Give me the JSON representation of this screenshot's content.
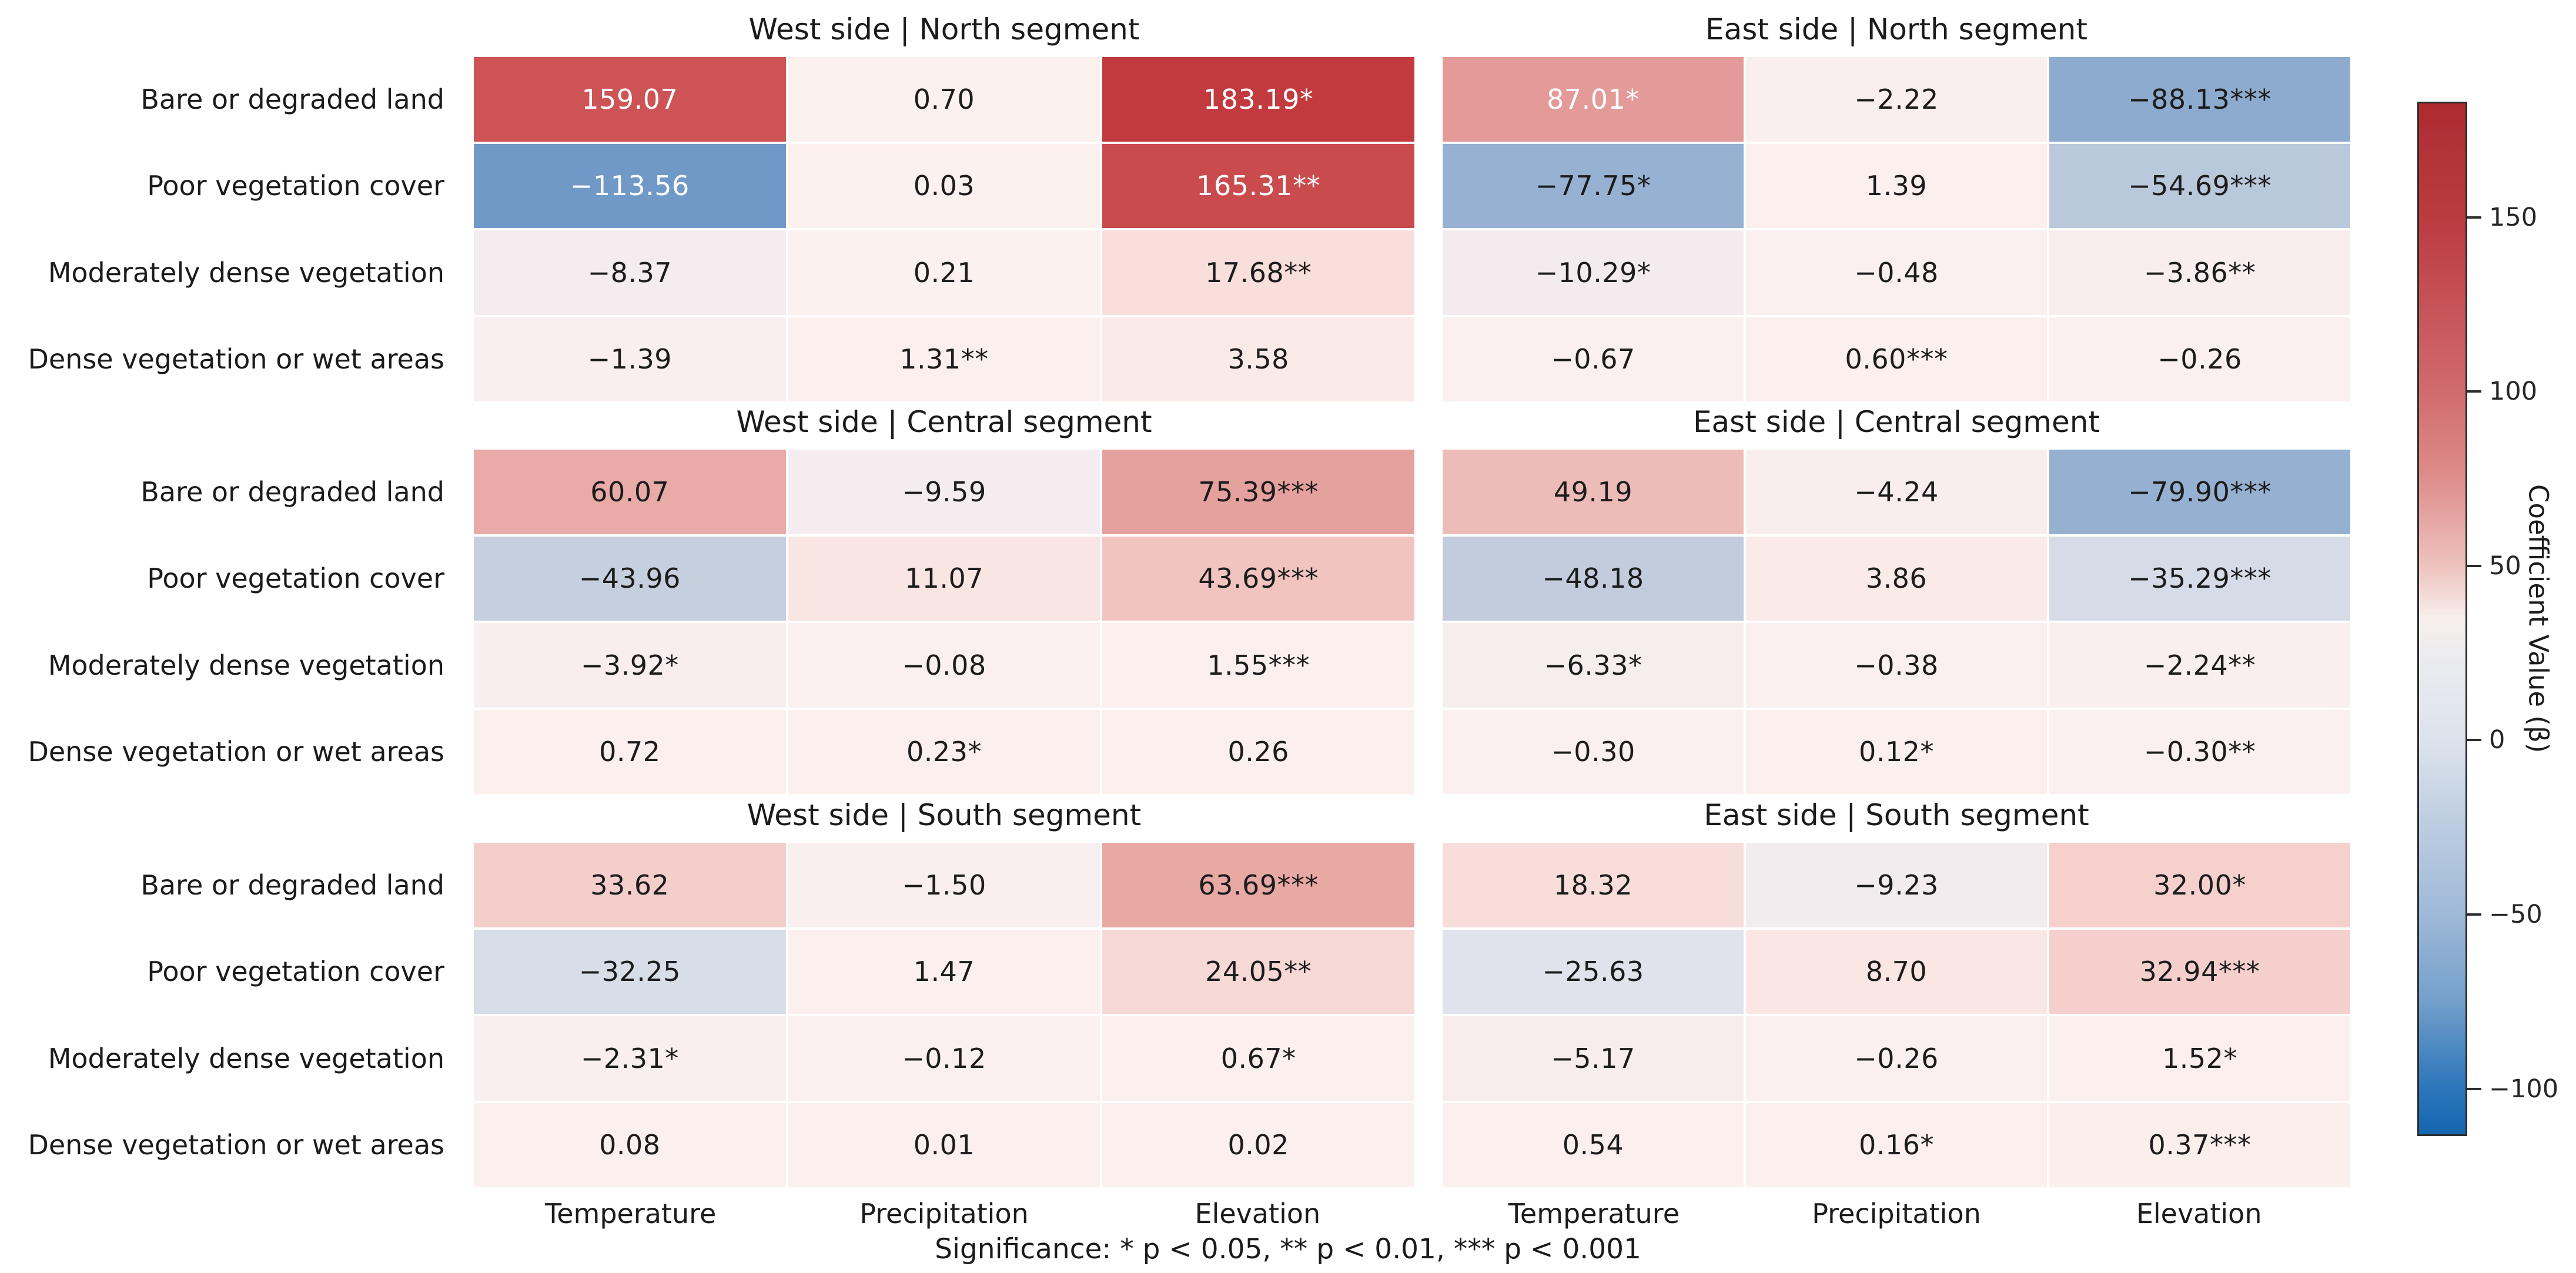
{
  "chart_data": {
    "type": "heatmap",
    "layout_grid": "3 panel-rows x 2 panel-columns, shared colorbar on right",
    "rows": [
      "Bare or degraded land",
      "Poor vegetation cover",
      "Moderately dense vegetation",
      "Dense vegetation or wet areas"
    ],
    "columns": [
      "Temperature",
      "Precipitation",
      "Elevation"
    ],
    "footer": "Significance: * p < 0.05, ** p < 0.01, *** p < 0.001",
    "colorbar": {
      "label": "Coefficient Value (β)",
      "vmin": -113.56,
      "vmax": 183.19,
      "ticks": [
        {
          "label": "150",
          "value": 150
        },
        {
          "label": "100",
          "value": 100
        },
        {
          "label": "50",
          "value": 50
        },
        {
          "label": "0",
          "value": 0
        },
        {
          "label": "−50",
          "value": -50
        },
        {
          "label": "−100",
          "value": -100
        }
      ],
      "gradient": [
        {
          "p": 0,
          "c": "#ad2a31"
        },
        {
          "p": 6,
          "c": "#b5343a"
        },
        {
          "p": 11.2,
          "c": "#bb3b41"
        },
        {
          "p": 20,
          "c": "#c75458"
        },
        {
          "p": 28,
          "c": "#d16b6d"
        },
        {
          "p": 36.5,
          "c": "#de8e8c"
        },
        {
          "p": 44.9,
          "c": "#eec3be"
        },
        {
          "p": 50,
          "c": "#f7efec"
        },
        {
          "p": 55,
          "c": "#e8eaef"
        },
        {
          "p": 61.7,
          "c": "#dde3ec"
        },
        {
          "p": 70,
          "c": "#bccde1"
        },
        {
          "p": 78.6,
          "c": "#9fb9d8"
        },
        {
          "p": 87,
          "c": "#74a0cb"
        },
        {
          "p": 95.4,
          "c": "#2d76bb"
        },
        {
          "p": 100,
          "c": "#1366b0"
        }
      ]
    },
    "panels": [
      {
        "title": "West side | North segment",
        "side": "west",
        "prow": 0,
        "cells": [
          [
            {
              "v": 159.07,
              "s": "",
              "bg": "#cd5355",
              "fg": "#ffffff"
            },
            {
              "v": 0.7,
              "s": "",
              "bg": "#fbf1ee",
              "fg": "#1c1c1c"
            },
            {
              "v": 183.19,
              "s": "*",
              "bg": "#c23a3e",
              "fg": "#ffffff"
            }
          ],
          [
            {
              "v": -113.56,
              "s": "",
              "bg": "#7199c7",
              "fg": "#ffffff"
            },
            {
              "v": 0.03,
              "s": "",
              "bg": "#fbf1ef",
              "fg": "#1c1c1c"
            },
            {
              "v": 165.31,
              "s": "**",
              "bg": "#ca4b4e",
              "fg": "#ffffff"
            }
          ],
          [
            {
              "v": -8.37,
              "s": "",
              "bg": "#f5ecef",
              "fg": "#1c1c1c"
            },
            {
              "v": 0.21,
              "s": "",
              "bg": "#fbf1ee",
              "fg": "#1c1c1c"
            },
            {
              "v": 17.68,
              "s": "**",
              "bg": "#f8dfdb",
              "fg": "#1c1c1c"
            }
          ],
          [
            {
              "v": -1.39,
              "s": "",
              "bg": "#f9eff0",
              "fg": "#1c1c1c"
            },
            {
              "v": 1.31,
              "s": "**",
              "bg": "#fbf0ed",
              "fg": "#1c1c1c"
            },
            {
              "v": 3.58,
              "s": "",
              "bg": "#fbebe8",
              "fg": "#1c1c1c"
            }
          ]
        ]
      },
      {
        "title": "East side | North segment",
        "side": "east",
        "prow": 0,
        "cells": [
          [
            {
              "v": 87.01,
              "s": "*",
              "bg": "#e39a98",
              "fg": "#ffffff"
            },
            {
              "v": -2.22,
              "s": "",
              "bg": "#f9eff0",
              "fg": "#1c1c1c"
            },
            {
              "v": -88.13,
              "s": "***",
              "bg": "#8dabce",
              "fg": "#1c1c1c"
            }
          ],
          [
            {
              "v": -77.75,
              "s": "*",
              "bg": "#97b1d2",
              "fg": "#1c1c1c"
            },
            {
              "v": 1.39,
              "s": "",
              "bg": "#fbf0ed",
              "fg": "#1c1c1c"
            },
            {
              "v": -54.69,
              "s": "***",
              "bg": "#bac8db",
              "fg": "#1c1c1c"
            }
          ],
          [
            {
              "v": -10.29,
              "s": "*",
              "bg": "#f3ebee",
              "fg": "#1c1c1c"
            },
            {
              "v": -0.48,
              "s": "",
              "bg": "#faf0f0",
              "fg": "#1c1c1c"
            },
            {
              "v": -3.86,
              "s": "**",
              "bg": "#f8eef0",
              "fg": "#1c1c1c"
            }
          ],
          [
            {
              "v": -0.67,
              "s": "",
              "bg": "#faf0f0",
              "fg": "#1c1c1c"
            },
            {
              "v": 0.6,
              "s": "***",
              "bg": "#fbf0ed",
              "fg": "#1c1c1c"
            },
            {
              "v": -0.26,
              "s": "",
              "bg": "#faf0f0",
              "fg": "#1c1c1c"
            }
          ]
        ]
      },
      {
        "title": "West side | Central segment",
        "side": "west",
        "prow": 1,
        "cells": [
          [
            {
              "v": 60.07,
              "s": "",
              "bg": "#e9aba7",
              "fg": "#1c1c1c"
            },
            {
              "v": -9.59,
              "s": "",
              "bg": "#f4ecef",
              "fg": "#1c1c1c"
            },
            {
              "v": 75.39,
              "s": "***",
              "bg": "#e5a19d",
              "fg": "#1c1c1c"
            }
          ],
          [
            {
              "v": -43.96,
              "s": "",
              "bg": "#c6cfde",
              "fg": "#1c1c1c"
            },
            {
              "v": 11.07,
              "s": "",
              "bg": "#f9e5e2",
              "fg": "#1c1c1c"
            },
            {
              "v": 43.69,
              "s": "***",
              "bg": "#f1c4c0",
              "fg": "#1c1c1c"
            }
          ],
          [
            {
              "v": -3.92,
              "s": "*",
              "bg": "#f8eef0",
              "fg": "#1c1c1c"
            },
            {
              "v": -0.08,
              "s": "",
              "bg": "#faf0f0",
              "fg": "#1c1c1c"
            },
            {
              "v": 1.55,
              "s": "***",
              "bg": "#fbf0ed",
              "fg": "#1c1c1c"
            }
          ],
          [
            {
              "v": 0.72,
              "s": "",
              "bg": "#fbf0ed",
              "fg": "#1c1c1c"
            },
            {
              "v": 0.23,
              "s": "*",
              "bg": "#fbf0ed",
              "fg": "#1c1c1c"
            },
            {
              "v": 0.26,
              "s": "",
              "bg": "#fbf0ed",
              "fg": "#1c1c1c"
            }
          ]
        ]
      },
      {
        "title": "East side | Central segment",
        "side": "east",
        "prow": 1,
        "cells": [
          [
            {
              "v": 49.19,
              "s": "",
              "bg": "#eebcb8",
              "fg": "#1c1c1c"
            },
            {
              "v": -4.24,
              "s": "",
              "bg": "#f8eef0",
              "fg": "#1c1c1c"
            },
            {
              "v": -79.9,
              "s": "***",
              "bg": "#95b0d1",
              "fg": "#1c1c1c"
            }
          ],
          [
            {
              "v": -48.18,
              "s": "",
              "bg": "#c2ccdc",
              "fg": "#1c1c1c"
            },
            {
              "v": 3.86,
              "s": "",
              "bg": "#fbebe8",
              "fg": "#1c1c1c"
            },
            {
              "v": -35.29,
              "s": "***",
              "bg": "#d5dbe7",
              "fg": "#1c1c1c"
            }
          ],
          [
            {
              "v": -6.33,
              "s": "*",
              "bg": "#f6edef",
              "fg": "#1c1c1c"
            },
            {
              "v": -0.38,
              "s": "",
              "bg": "#faf0f0",
              "fg": "#1c1c1c"
            },
            {
              "v": -2.24,
              "s": "**",
              "bg": "#f9eff0",
              "fg": "#1c1c1c"
            }
          ],
          [
            {
              "v": -0.3,
              "s": "",
              "bg": "#faf0f0",
              "fg": "#1c1c1c"
            },
            {
              "v": 0.12,
              "s": "*",
              "bg": "#fbf0ed",
              "fg": "#1c1c1c"
            },
            {
              "v": -0.3,
              "s": "**",
              "bg": "#faf0f0",
              "fg": "#1c1c1c"
            }
          ]
        ]
      },
      {
        "title": "West side | South segment",
        "side": "west",
        "prow": 2,
        "cells": [
          [
            {
              "v": 33.62,
              "s": "",
              "bg": "#f4cecb",
              "fg": "#1c1c1c"
            },
            {
              "v": -1.5,
              "s": "",
              "bg": "#f9eff0",
              "fg": "#1c1c1c"
            },
            {
              "v": 63.69,
              "s": "***",
              "bg": "#e8a8a4",
              "fg": "#1c1c1c"
            }
          ],
          [
            {
              "v": -32.25,
              "s": "",
              "bg": "#d8dee8",
              "fg": "#1c1c1c"
            },
            {
              "v": 1.47,
              "s": "",
              "bg": "#fbf0ed",
              "fg": "#1c1c1c"
            },
            {
              "v": 24.05,
              "s": "**",
              "bg": "#f6d8d4",
              "fg": "#1c1c1c"
            }
          ],
          [
            {
              "v": -2.31,
              "s": "*",
              "bg": "#f9eff0",
              "fg": "#1c1c1c"
            },
            {
              "v": -0.12,
              "s": "",
              "bg": "#faf0f0",
              "fg": "#1c1c1c"
            },
            {
              "v": 0.67,
              "s": "*",
              "bg": "#fbf0ed",
              "fg": "#1c1c1c"
            }
          ],
          [
            {
              "v": 0.08,
              "s": "",
              "bg": "#fbf0ed",
              "fg": "#1c1c1c"
            },
            {
              "v": 0.01,
              "s": "",
              "bg": "#fbf0ed",
              "fg": "#1c1c1c"
            },
            {
              "v": 0.02,
              "s": "",
              "bg": "#fbf0ed",
              "fg": "#1c1c1c"
            }
          ]
        ]
      },
      {
        "title": "East side | South segment",
        "side": "east",
        "prow": 2,
        "cells": [
          [
            {
              "v": 18.32,
              "s": "",
              "bg": "#f8dedb",
              "fg": "#1c1c1c"
            },
            {
              "v": -9.23,
              "s": "",
              "bg": "#f3ecef",
              "fg": "#1c1c1c"
            },
            {
              "v": 32.0,
              "s": "*",
              "bg": "#f5d0cc",
              "fg": "#1c1c1c"
            }
          ],
          [
            {
              "v": -25.63,
              "s": "",
              "bg": "#e0e3eb",
              "fg": "#1c1c1c"
            },
            {
              "v": 8.7,
              "s": "",
              "bg": "#fae7e4",
              "fg": "#1c1c1c"
            },
            {
              "v": 32.94,
              "s": "***",
              "bg": "#f5cfcb",
              "fg": "#1c1c1c"
            }
          ],
          [
            {
              "v": -5.17,
              "s": "",
              "bg": "#f7edef",
              "fg": "#1c1c1c"
            },
            {
              "v": -0.26,
              "s": "",
              "bg": "#faf0f0",
              "fg": "#1c1c1c"
            },
            {
              "v": 1.52,
              "s": "*",
              "bg": "#fbf0ed",
              "fg": "#1c1c1c"
            }
          ],
          [
            {
              "v": 0.54,
              "s": "",
              "bg": "#fbf0ed",
              "fg": "#1c1c1c"
            },
            {
              "v": 0.16,
              "s": "*",
              "bg": "#fbf0ed",
              "fg": "#1c1c1c"
            },
            {
              "v": 0.37,
              "s": "***",
              "bg": "#fbefec",
              "fg": "#1c1c1c"
            }
          ]
        ]
      }
    ]
  }
}
